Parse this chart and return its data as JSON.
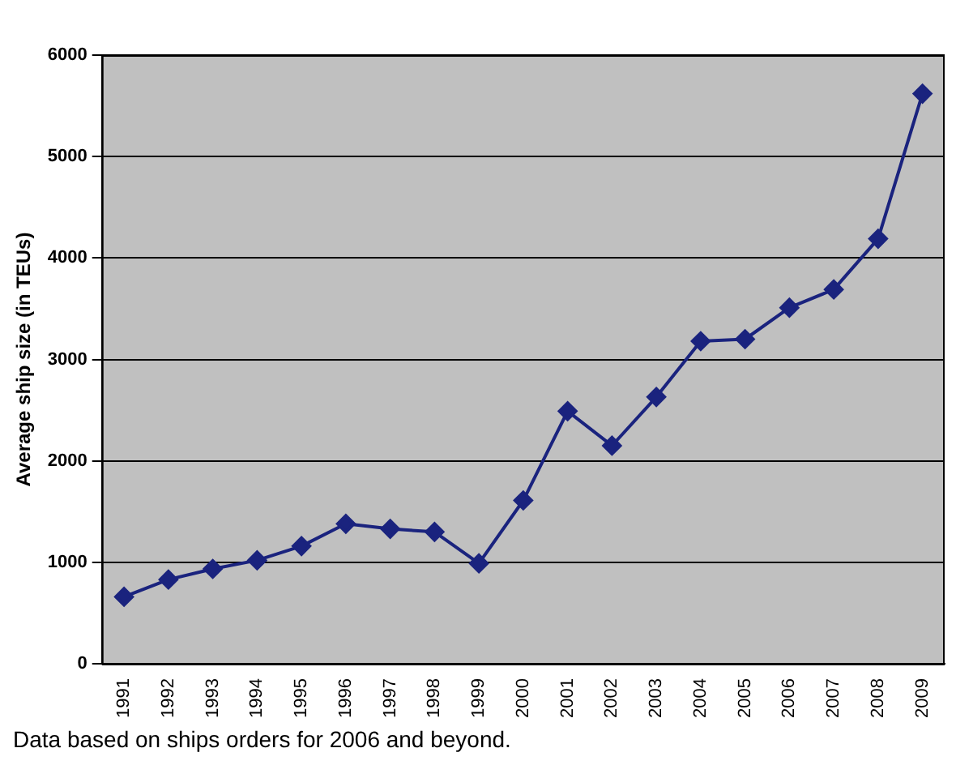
{
  "chart_data": {
    "type": "line",
    "ylabel": "Average ship size (in TEUs)",
    "categories": [
      "1991",
      "1992",
      "1993",
      "1994",
      "1995",
      "1996",
      "1997",
      "1998",
      "1999",
      "2000",
      "2001",
      "2002",
      "2003",
      "2004",
      "2005",
      "2006",
      "2007",
      "2008",
      "2009"
    ],
    "series": [
      {
        "color": "#1a237e",
        "values": [
          660,
          830,
          935,
          1020,
          1160,
          1380,
          1330,
          1300,
          990,
          1610,
          2490,
          2150,
          2630,
          3180,
          3200,
          3510,
          3690,
          4190,
          5620
        ]
      }
    ],
    "ylim": [
      0,
      6000
    ],
    "yticks": [
      0,
      1000,
      2000,
      3000,
      4000,
      5000,
      6000
    ],
    "grid": "y",
    "legend": false,
    "marker": "diamond",
    "line_style": "solid",
    "annotations": [
      "Data based on ships orders for 2006 and beyond."
    ]
  }
}
